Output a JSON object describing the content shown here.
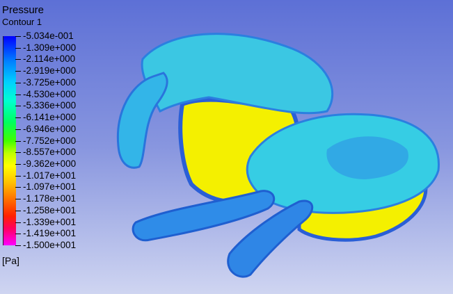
{
  "legend": {
    "title": "Pressure",
    "subtitle": "Contour 1",
    "units": "[Pa]",
    "values": [
      "-5.034e-001",
      "-1.309e+000",
      "-2.114e+000",
      "-2.919e+000",
      "-3.725e+000",
      "-4.530e+000",
      "-5.336e+000",
      "-6.141e+000",
      "-6.946e+000",
      "-7.752e+000",
      "-8.557e+000",
      "-9.362e+000",
      "-1.017e+001",
      "-1.097e+001",
      "-1.178e+001",
      "-1.258e+001",
      "-1.339e+001",
      "-1.419e+001",
      "-1.500e+001"
    ]
  },
  "colors": {
    "background_top": "#5d70d6",
    "model_blue": "#2f8ce8",
    "model_cyan": "#38d6e6",
    "model_yellow": "#f4f000"
  }
}
